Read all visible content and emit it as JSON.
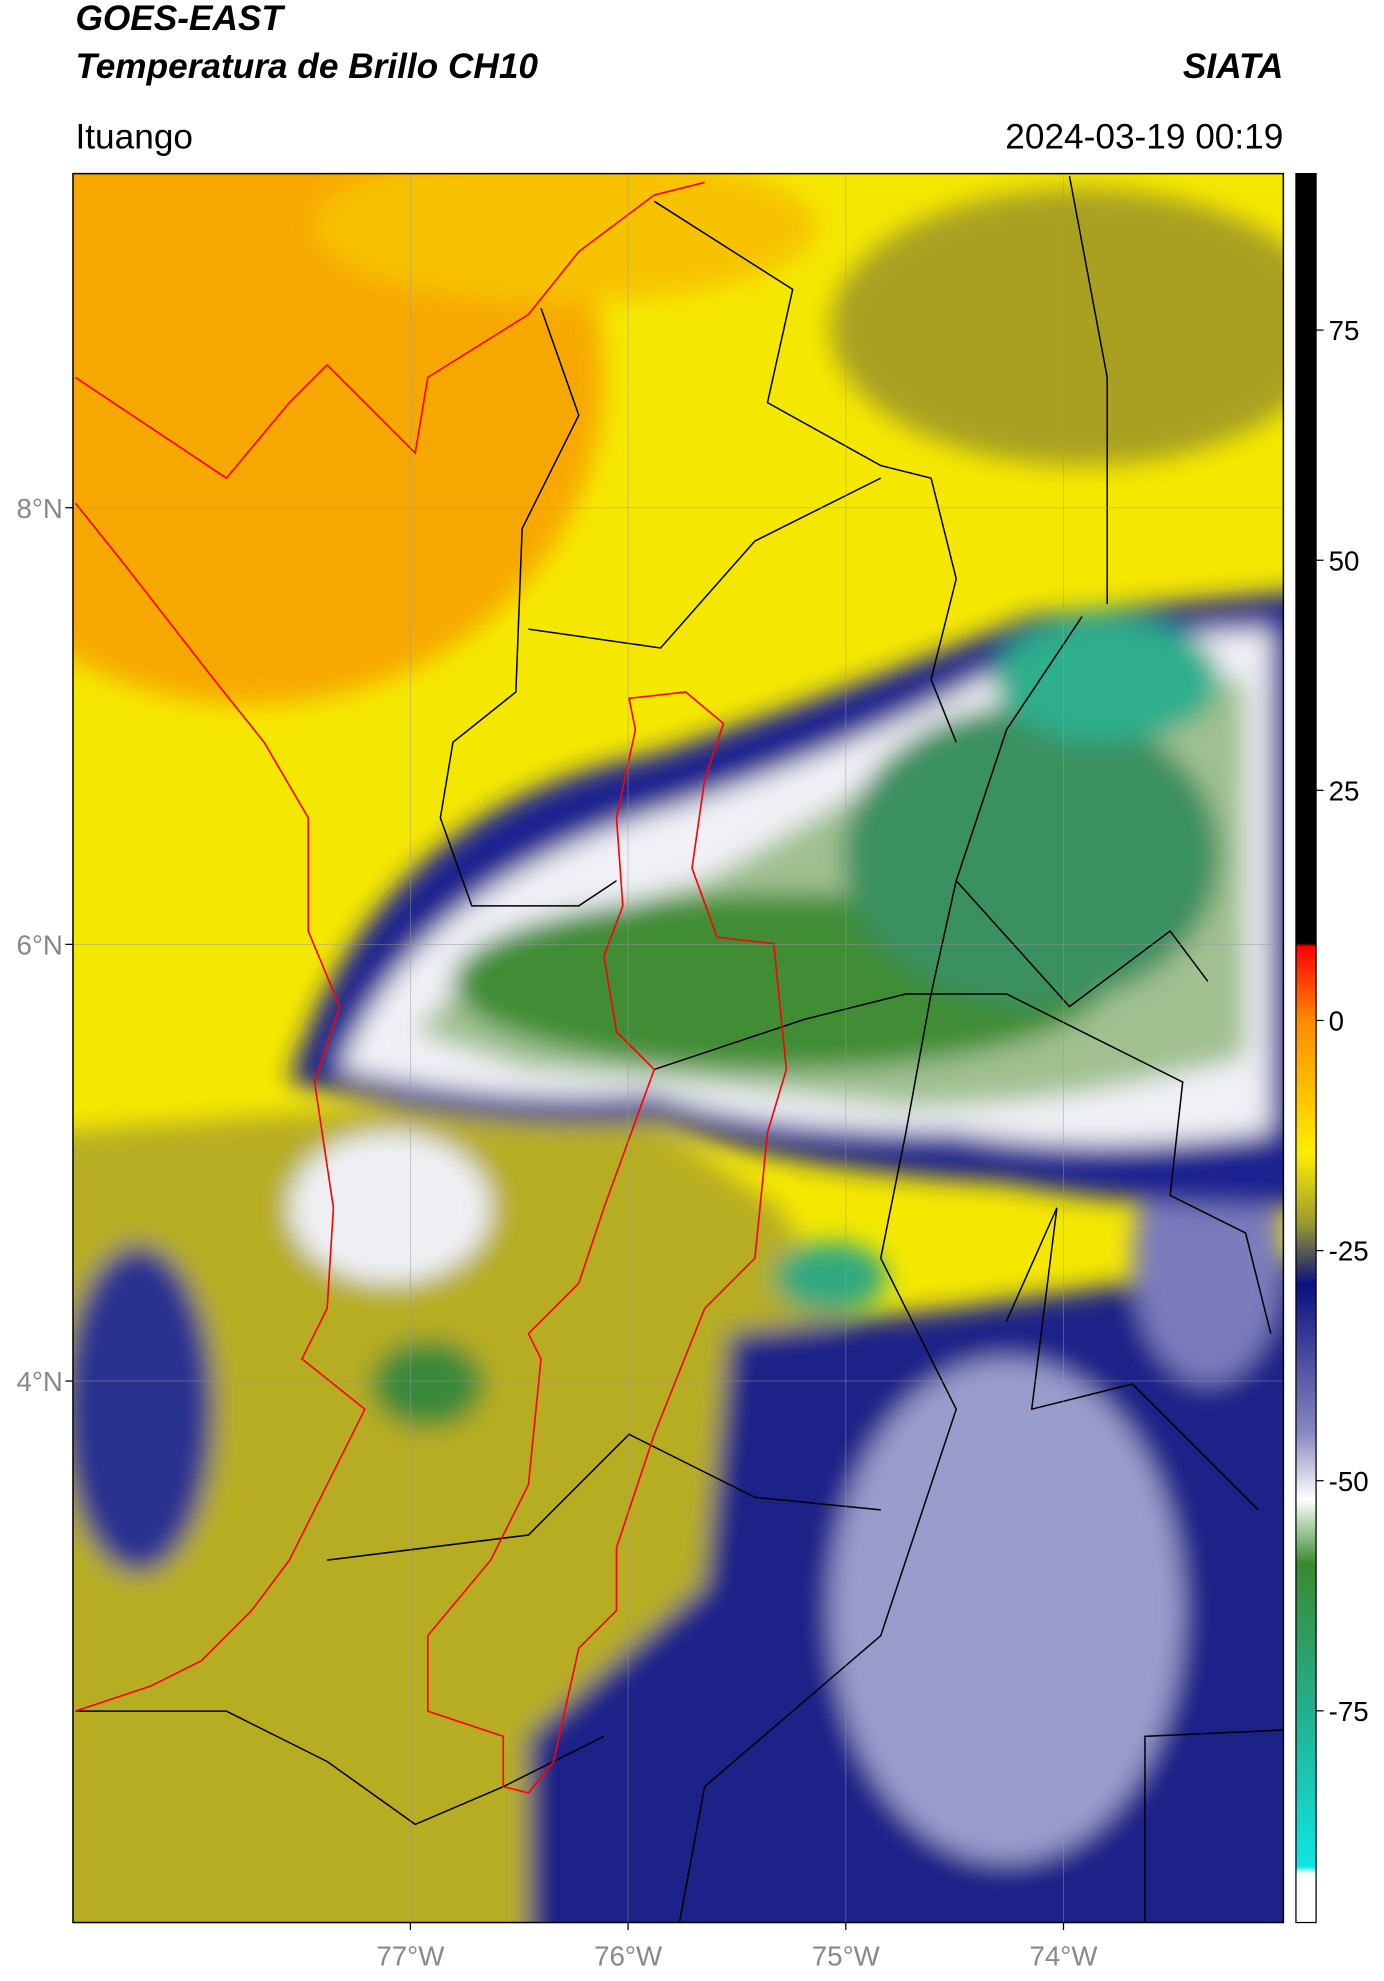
{
  "header": {
    "title": "GOES-EAST",
    "subtitle": "Temperatura de Brillo CH10",
    "source": "SIATA",
    "location": "Ituango",
    "datetime": "2024-03-19 00:19"
  },
  "map": {
    "xlim": [
      -78.55,
      -72.99
    ],
    "ylim": [
      1.52,
      9.53
    ],
    "xticks": [
      {
        "value": -77,
        "label": "77°W"
      },
      {
        "value": -76,
        "label": "76°W"
      },
      {
        "value": -75,
        "label": "75°W"
      },
      {
        "value": -74,
        "label": "74°W"
      }
    ],
    "yticks": [
      {
        "value": 8,
        "label": "8°N"
      },
      {
        "value": 6,
        "label": "6°N"
      },
      {
        "value": 4,
        "label": "4°N"
      }
    ],
    "grid": true
  },
  "colorbar": {
    "lim": [
      -98,
      92
    ],
    "ticks": [
      75,
      50,
      25,
      0,
      -25,
      -50,
      -75
    ]
  }
}
